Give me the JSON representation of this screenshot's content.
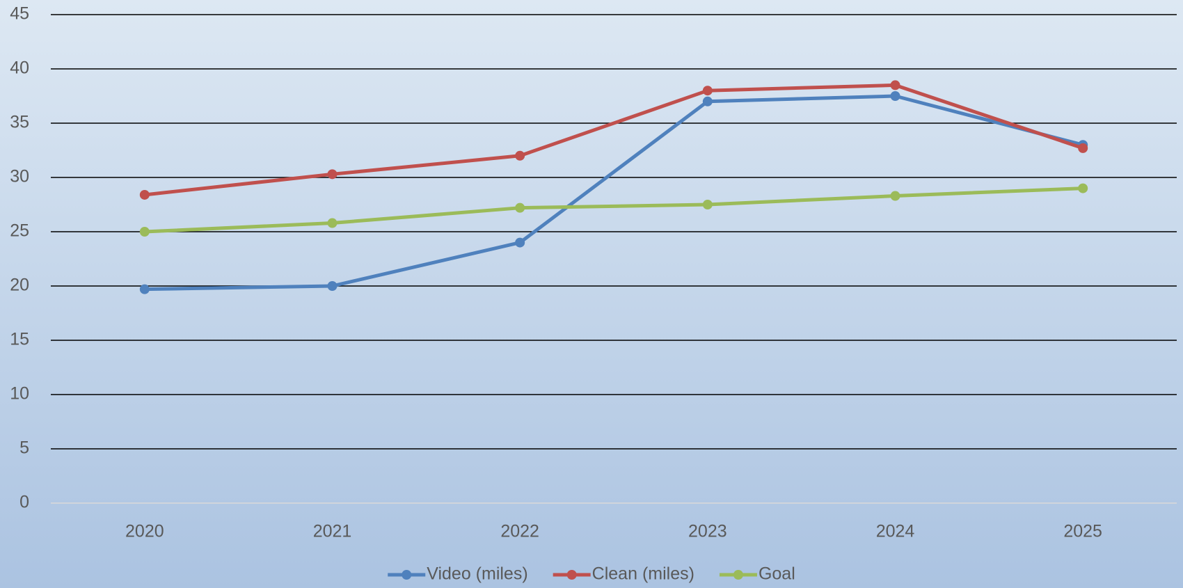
{
  "chart_data": {
    "type": "line",
    "categories": [
      "2020",
      "2021",
      "2022",
      "2023",
      "2024",
      "2025"
    ],
    "series": [
      {
        "name": "Video (miles)",
        "color": "#4f81bd",
        "values": [
          19.7,
          20.0,
          24.0,
          37.0,
          37.5,
          33.0
        ]
      },
      {
        "name": "Clean (miles)",
        "color": "#c0504d",
        "values": [
          28.4,
          30.3,
          32.0,
          38.0,
          38.5,
          32.7
        ]
      },
      {
        "name": "Goal",
        "color": "#9bbb59",
        "values": [
          25.0,
          25.8,
          27.2,
          27.5,
          28.3,
          29.0
        ]
      }
    ],
    "ylim": [
      0,
      45
    ],
    "yticks": [
      0,
      5,
      10,
      15,
      20,
      25,
      30,
      35,
      40,
      45
    ],
    "grid": true,
    "legend": "bottom"
  }
}
